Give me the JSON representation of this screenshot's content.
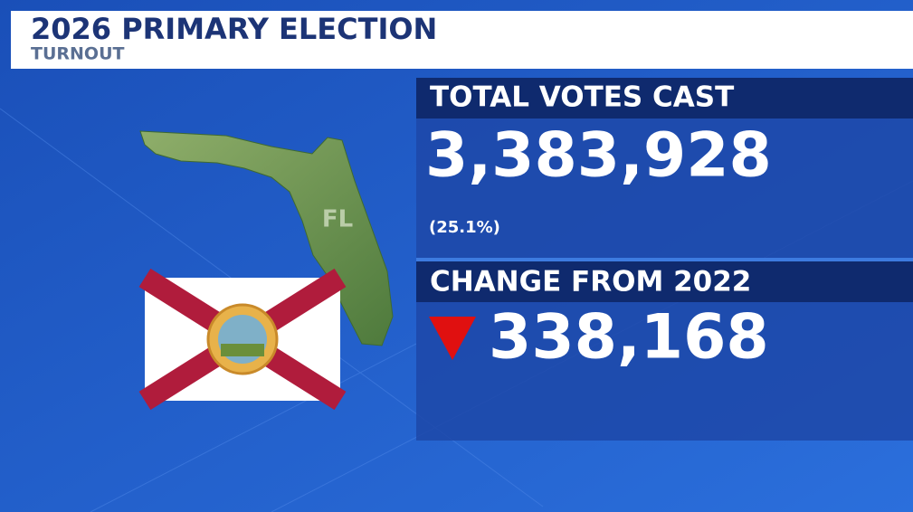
{
  "header": {
    "title": "2026 PRIMARY ELECTION",
    "subtitle": "TURNOUT"
  },
  "map": {
    "label": "FL"
  },
  "panels": [
    {
      "label": "TOTAL VOTES CAST",
      "value": "3,383,928",
      "note": "(25.1%)"
    },
    {
      "label": "CHANGE FROM 2022",
      "value": "338,168"
    }
  ]
}
